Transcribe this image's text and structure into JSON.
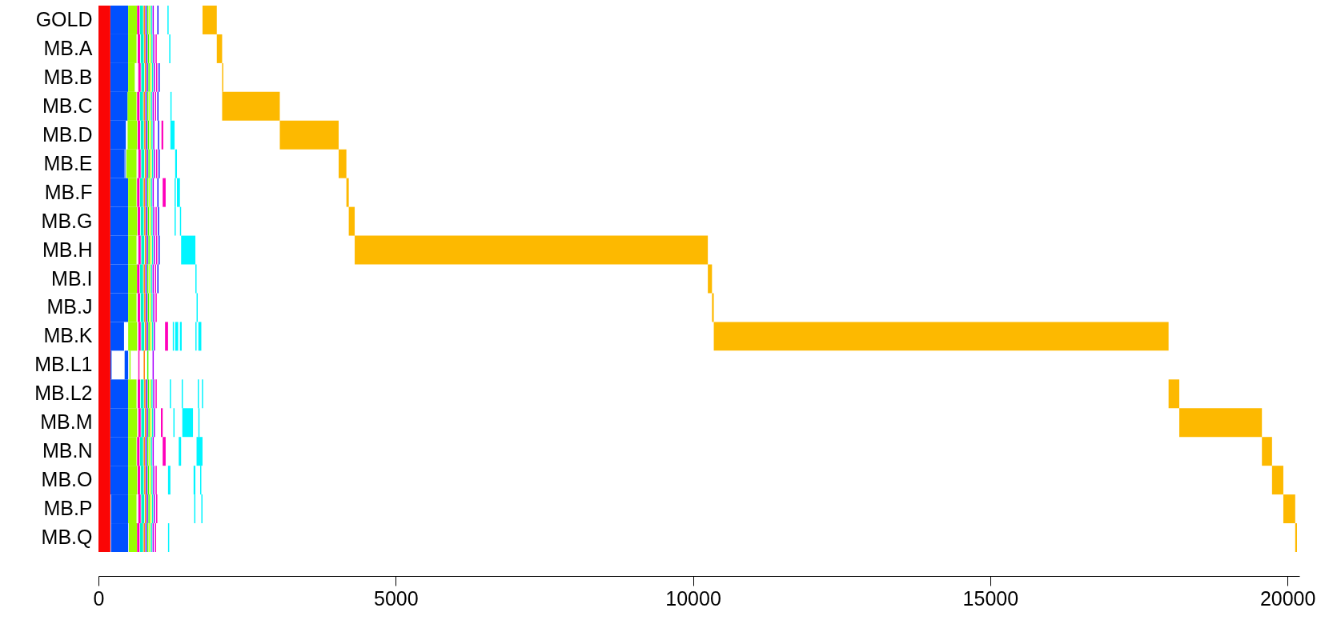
{
  "chart_data": {
    "type": "bar",
    "orientation": "horizontal",
    "categories": [
      "GOLD",
      "MB.A",
      "MB.B",
      "MB.C",
      "MB.D",
      "MB.E",
      "MB.F",
      "MB.G",
      "MB.H",
      "MB.I",
      "MB.J",
      "MB.K",
      "MB.L1",
      "MB.L2",
      "MB.M",
      "MB.N",
      "MB.O",
      "MB.P",
      "MB.Q"
    ],
    "xlim": [
      0,
      20200
    ],
    "xticks": [
      0,
      5000,
      10000,
      15000,
      20000
    ],
    "grid": false,
    "bands": [
      {
        "axis": "x",
        "from": 0,
        "to": 200,
        "color": "#fa0505"
      }
    ],
    "series": [
      {
        "color": "#0050ff",
        "base": [
          200,
          200,
          200,
          200,
          200,
          200,
          200,
          200,
          200,
          200,
          200,
          200,
          200,
          200,
          200,
          200,
          200,
          210,
          210
        ],
        "values": [
          300,
          300,
          300,
          290,
          260,
          240,
          300,
          300,
          300,
          300,
          300,
          230,
          20,
          300,
          300,
          300,
          300,
          290,
          290
        ]
      },
      {
        "color": "#0050ff",
        "base": [
          null,
          null,
          null,
          null,
          null,
          450,
          null,
          null,
          null,
          null,
          null,
          null,
          440,
          null,
          null,
          null,
          null,
          null,
          null
        ],
        "values": [
          null,
          null,
          null,
          null,
          null,
          10,
          null,
          null,
          null,
          null,
          null,
          null,
          60,
          null,
          null,
          null,
          null,
          null,
          null
        ]
      },
      {
        "color": "#99ff00",
        "base": [
          500,
          500,
          500,
          490,
          490,
          470,
          500,
          500,
          500,
          500,
          500,
          500,
          520,
          500,
          500,
          500,
          500,
          500,
          510
        ],
        "values": [
          150,
          140,
          110,
          150,
          160,
          170,
          140,
          150,
          140,
          150,
          140,
          150,
          20,
          140,
          150,
          140,
          150,
          140,
          140
        ]
      },
      {
        "color": "#ff00bb",
        "base": [
          650,
          660,
          670,
          650,
          660,
          670,
          650,
          660,
          670,
          650,
          660,
          670,
          670,
          660,
          670,
          650,
          660,
          670,
          650
        ],
        "values": [
          40,
          40,
          40,
          40,
          40,
          40,
          40,
          40,
          40,
          40,
          40,
          40,
          20,
          40,
          40,
          40,
          40,
          40,
          40
        ]
      },
      {
        "color": "#00f5c8",
        "base": [
          700,
          710,
          720,
          700,
          710,
          720,
          700,
          710,
          720,
          700,
          710,
          720,
          null,
          710,
          720,
          700,
          710,
          720,
          700
        ],
        "values": [
          50,
          50,
          50,
          50,
          50,
          50,
          50,
          50,
          50,
          50,
          50,
          50,
          null,
          50,
          50,
          50,
          50,
          50,
          50
        ]
      },
      {
        "color": "#ff8000",
        "base": [
          760,
          770,
          780,
          760,
          770,
          780,
          760,
          770,
          780,
          760,
          770,
          780,
          760,
          770,
          780,
          760,
          770,
          780,
          760
        ],
        "values": [
          20,
          20,
          20,
          20,
          20,
          20,
          20,
          20,
          20,
          20,
          20,
          20,
          20,
          20,
          20,
          20,
          20,
          20,
          20
        ]
      },
      {
        "color": "#5500ff",
        "base": [
          790,
          800,
          810,
          790,
          800,
          810,
          790,
          800,
          810,
          790,
          800,
          810,
          null,
          800,
          810,
          790,
          800,
          810,
          790
        ],
        "values": [
          20,
          20,
          20,
          20,
          20,
          20,
          20,
          20,
          20,
          20,
          20,
          20,
          null,
          20,
          20,
          20,
          20,
          20,
          20
        ]
      },
      {
        "color": "#33ff00",
        "base": [
          820,
          830,
          840,
          820,
          830,
          840,
          820,
          830,
          840,
          820,
          830,
          840,
          820,
          830,
          840,
          820,
          830,
          840,
          820
        ],
        "values": [
          20,
          20,
          20,
          20,
          20,
          20,
          20,
          20,
          20,
          20,
          20,
          20,
          20,
          20,
          20,
          20,
          20,
          20,
          20
        ]
      },
      {
        "color": "#ddff00",
        "base": [
          850,
          860,
          870,
          850,
          860,
          870,
          850,
          860,
          870,
          850,
          860,
          870,
          null,
          860,
          870,
          850,
          860,
          870,
          850
        ],
        "values": [
          20,
          20,
          20,
          20,
          20,
          20,
          20,
          20,
          20,
          20,
          20,
          20,
          null,
          20,
          20,
          20,
          20,
          20,
          20
        ]
      },
      {
        "color": "#00f5c8",
        "base": [
          880,
          890,
          900,
          880,
          890,
          900,
          880,
          890,
          900,
          880,
          890,
          900,
          null,
          890,
          900,
          880,
          890,
          900,
          880
        ],
        "values": [
          20,
          20,
          20,
          20,
          20,
          20,
          20,
          20,
          20,
          20,
          20,
          20,
          null,
          20,
          20,
          20,
          20,
          20,
          20
        ]
      },
      {
        "color": "#aa00ff",
        "base": [
          910,
          920,
          930,
          910,
          920,
          930,
          910,
          920,
          930,
          910,
          920,
          930,
          910,
          920,
          930,
          910,
          920,
          930,
          910
        ],
        "values": [
          20,
          20,
          20,
          20,
          20,
          20,
          20,
          20,
          20,
          20,
          20,
          20,
          20,
          20,
          20,
          20,
          20,
          20,
          20
        ]
      },
      {
        "color": "#ff00bb",
        "base": [
          null,
          960,
          970,
          950,
          1060,
          970,
          1080,
          960,
          970,
          950,
          960,
          1120,
          null,
          960,
          1050,
          1080,
          960,
          970,
          950
        ],
        "values": [
          null,
          20,
          20,
          20,
          30,
          20,
          50,
          20,
          20,
          20,
          20,
          50,
          null,
          20,
          30,
          50,
          20,
          20,
          20
        ]
      },
      {
        "color": "#1a1aff",
        "base": [
          990,
          null,
          1010,
          990,
          1000,
          1010,
          990,
          1000,
          1010,
          990,
          null,
          null,
          null,
          null,
          null,
          null,
          null,
          null,
          null
        ],
        "values": [
          20,
          null,
          20,
          20,
          20,
          20,
          20,
          20,
          20,
          20,
          null,
          null,
          null,
          null,
          null,
          null,
          null,
          null,
          null
        ]
      },
      {
        "color": "#00f5ff",
        "base": [
          1160,
          1190,
          null,
          1210,
          1210,
          1290,
          1280,
          1280,
          1390,
          1630,
          1650,
          1250,
          null,
          1200,
          1260,
          1350,
          1170,
          1610,
          1170
        ],
        "values": [
          20,
          20,
          null,
          20,
          70,
          30,
          20,
          20,
          240,
          20,
          20,
          20,
          null,
          20,
          20,
          40,
          40,
          20,
          20
        ]
      },
      {
        "color": "#00f5ff",
        "base": [
          null,
          null,
          null,
          null,
          null,
          null,
          1320,
          1370,
          null,
          null,
          null,
          1290,
          null,
          1400,
          1410,
          1650,
          1600,
          1730,
          null
        ],
        "values": [
          null,
          null,
          null,
          null,
          null,
          null,
          50,
          20,
          null,
          null,
          null,
          50,
          null,
          20,
          180,
          100,
          30,
          20,
          null
        ]
      },
      {
        "color": "#00f5ff",
        "base": [
          null,
          null,
          null,
          null,
          null,
          null,
          null,
          null,
          null,
          null,
          null,
          1370,
          null,
          1670,
          1680,
          null,
          1710,
          null,
          null
        ],
        "values": [
          null,
          null,
          null,
          null,
          null,
          null,
          null,
          null,
          null,
          null,
          null,
          30,
          null,
          20,
          20,
          null,
          20,
          null,
          null
        ]
      },
      {
        "color": "#00f5ff",
        "base": [
          null,
          null,
          null,
          null,
          null,
          null,
          null,
          null,
          null,
          null,
          null,
          1630,
          null,
          1740,
          null,
          null,
          null,
          null,
          null
        ],
        "values": [
          null,
          null,
          null,
          null,
          null,
          null,
          null,
          null,
          null,
          null,
          null,
          20,
          null,
          20,
          null,
          null,
          null,
          null,
          null
        ]
      },
      {
        "color": "#00f5ff",
        "base": [
          null,
          null,
          null,
          null,
          null,
          null,
          null,
          null,
          null,
          null,
          null,
          1680,
          null,
          null,
          null,
          null,
          null,
          null,
          null
        ],
        "values": [
          null,
          null,
          null,
          null,
          null,
          null,
          null,
          null,
          null,
          null,
          null,
          50,
          null,
          null,
          null,
          null,
          null,
          null,
          null
        ]
      },
      {
        "color": "#fdb900",
        "base": [
          1750,
          1990,
          2080,
          2080,
          3050,
          4040,
          4170,
          4210,
          4310,
          10250,
          10320,
          10350,
          null,
          18000,
          18180,
          19570,
          19740,
          19930,
          20130
        ],
        "values": [
          240,
          90,
          20,
          970,
          990,
          130,
          40,
          100,
          5940,
          70,
          30,
          7650,
          null,
          180,
          1390,
          170,
          190,
          200,
          30
        ]
      }
    ]
  }
}
